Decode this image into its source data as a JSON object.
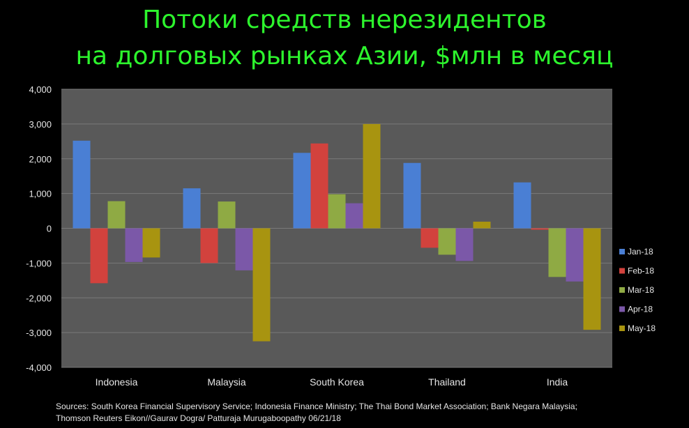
{
  "title_line1": "Потоки средств нерезидентов",
  "title_line2": "на долговых рынках Азии, $млн в месяц",
  "sources_line1": "Sources: South Korea Financial Supervisory Service; Indonesia Finance Ministry; The Thai Bond Market Association; Bank Negara Malaysia;",
  "sources_line2": "Thomson Reuters  Eikon//Gaurav Dogra/ Patturaja Murugaboopathy  06/21/18",
  "colors": {
    "background": "#000000",
    "title": "#2df52d",
    "plot_area": "#595959",
    "gridline": "#7a7a7a"
  },
  "chart_data": {
    "type": "bar",
    "categories": [
      "Indonesia",
      "Malaysia",
      "South Korea",
      "Thailand",
      "India"
    ],
    "series": [
      {
        "name": "Jan-18",
        "color": "#4a7fd4",
        "values": [
          2520,
          1150,
          2170,
          1880,
          1320
        ]
      },
      {
        "name": "Feb-18",
        "color": "#d2423d",
        "values": [
          -1580,
          -1000,
          2440,
          -560,
          -40
        ]
      },
      {
        "name": "Mar-18",
        "color": "#8faa44",
        "values": [
          780,
          770,
          980,
          -760,
          -1400
        ]
      },
      {
        "name": "Apr-18",
        "color": "#7b58a8",
        "values": [
          -970,
          -1210,
          720,
          -940,
          -1530
        ]
      },
      {
        "name": "May-18",
        "color": "#a89410",
        "values": [
          -840,
          -3250,
          3000,
          190,
          -2920
        ]
      }
    ],
    "ylim": [
      -4000,
      4000
    ],
    "yticks": [
      -4000,
      -3000,
      -2000,
      -1000,
      0,
      1000,
      2000,
      3000,
      4000
    ],
    "ytick_labels": [
      "-4,000",
      "-3,000",
      "-2,000",
      "-1,000",
      "0",
      "1,000",
      "2,000",
      "3,000",
      "4,000"
    ],
    "grid": true,
    "legend": "right"
  }
}
